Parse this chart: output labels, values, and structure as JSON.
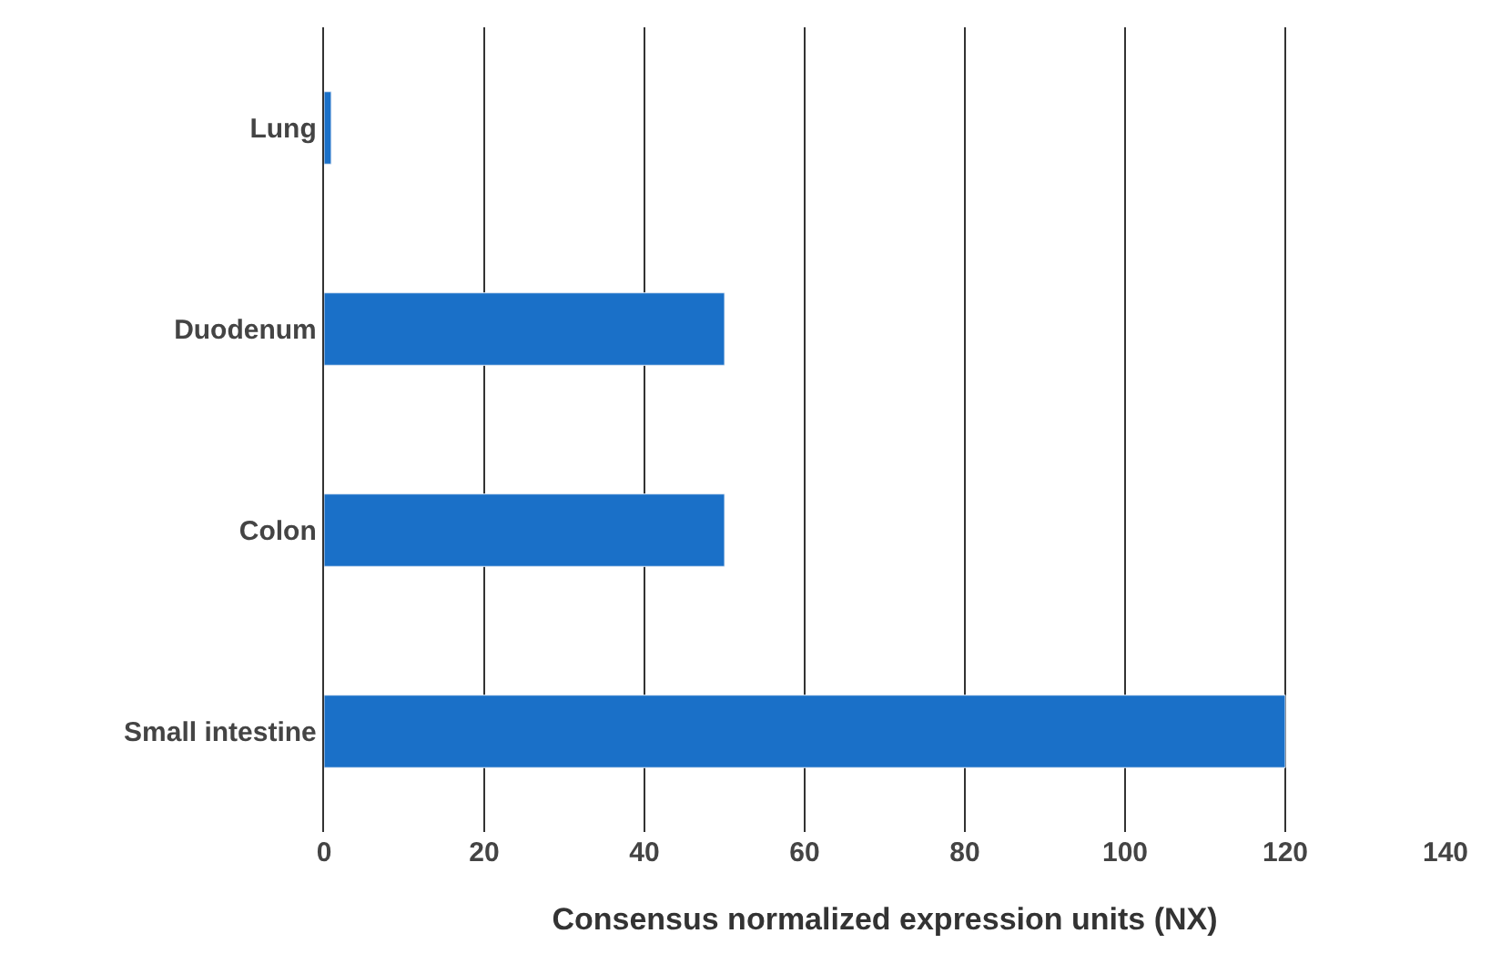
{
  "chart_data": {
    "type": "bar",
    "orientation": "horizontal",
    "xlabel": "Consensus normalized expression units (NX)",
    "categories": [
      "Lung",
      "Duodenum",
      "Colon",
      "Small intestine"
    ],
    "values": [
      0.9,
      50,
      50,
      120
    ],
    "color": "#1a70c8",
    "xlim": [
      0,
      140
    ],
    "xticks": [
      0,
      20,
      40,
      60,
      80,
      100,
      120,
      140
    ],
    "grid": "x",
    "legend": false
  }
}
